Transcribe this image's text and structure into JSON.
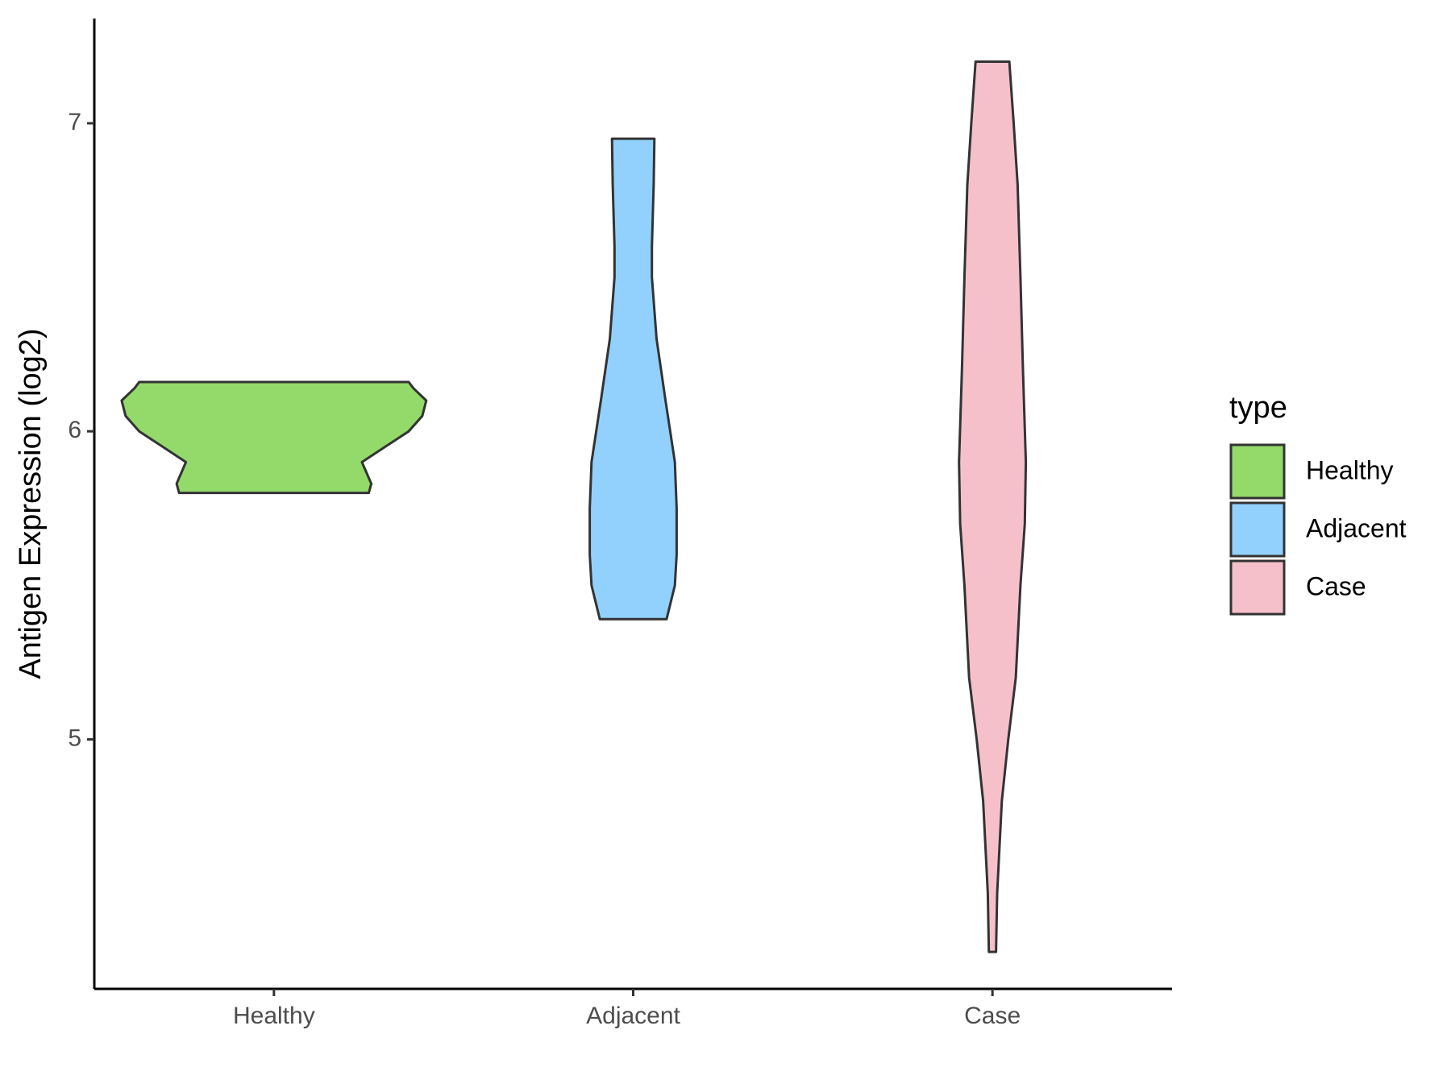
{
  "chart_data": {
    "type": "violin",
    "y_label": "Antigen Expression (log2)",
    "legend_title": "type",
    "categories": [
      "Healthy",
      "Adjacent",
      "Case"
    ],
    "ylim": [
      4.19,
      7.34
    ],
    "yticks": [
      5,
      6,
      7
    ],
    "series": [
      {
        "name": "Healthy",
        "color": "#93da6a",
        "y": [
          5.8,
          5.83,
          5.9,
          5.95,
          6.0,
          6.05,
          6.1,
          6.14,
          6.16
        ],
        "half_width": [
          0.264,
          0.271,
          0.245,
          0.31,
          0.375,
          0.413,
          0.424,
          0.388,
          0.375
        ]
      },
      {
        "name": "Adjacent",
        "color": "#92d1fd",
        "y": [
          5.39,
          5.5,
          5.6,
          5.75,
          5.9,
          6.1,
          6.3,
          6.5,
          6.6,
          6.8,
          6.95
        ],
        "half_width": [
          0.093,
          0.116,
          0.121,
          0.121,
          0.116,
          0.09,
          0.065,
          0.052,
          0.052,
          0.057,
          0.059
        ]
      },
      {
        "name": "Case",
        "color": "#f6c0cb",
        "y": [
          4.31,
          4.5,
          4.8,
          5.0,
          5.2,
          5.5,
          5.7,
          5.9,
          6.2,
          6.5,
          6.8,
          7.0,
          7.2
        ],
        "half_width": [
          0.01,
          0.013,
          0.026,
          0.044,
          0.065,
          0.078,
          0.09,
          0.093,
          0.085,
          0.078,
          0.07,
          0.059,
          0.047
        ]
      }
    ]
  }
}
